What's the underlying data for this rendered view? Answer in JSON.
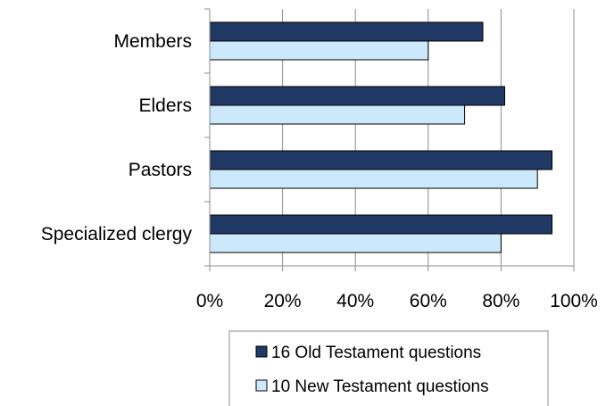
{
  "chart_data": {
    "type": "bar",
    "orientation": "horizontal",
    "categories": [
      "Members",
      "Elders",
      "Pastors",
      "Specialized clergy"
    ],
    "series": [
      {
        "name": "16 Old Testament questions",
        "values": [
          75,
          81,
          94,
          94
        ],
        "color": "#1f3864"
      },
      {
        "name": "10 New Testament questions",
        "values": [
          60,
          70,
          90,
          80
        ],
        "color": "#cce8fb"
      }
    ],
    "xlim": [
      0,
      100
    ],
    "x_ticks": [
      "0%",
      "20%",
      "40%",
      "60%",
      "80%",
      "100%"
    ],
    "grid": "vertical",
    "legend_position": "bottom",
    "title": "",
    "xlabel": "",
    "ylabel": ""
  }
}
